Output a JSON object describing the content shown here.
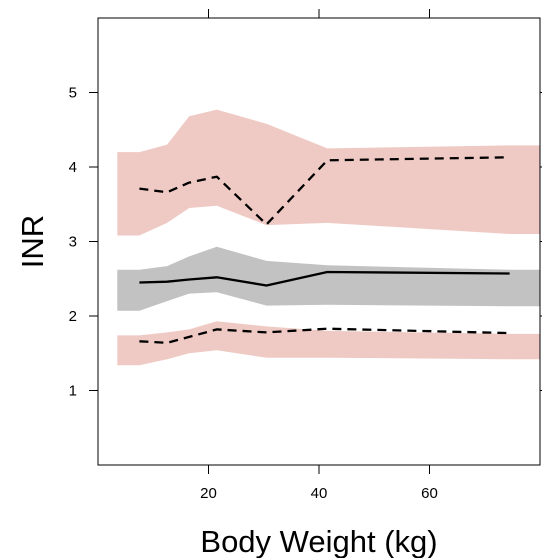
{
  "chart_data": {
    "type": "line",
    "title": "",
    "xlabel": "Body Weight (kg)",
    "ylabel": "INR",
    "xlim": [
      0,
      80
    ],
    "ylim": [
      0,
      6.0
    ],
    "xticks": [
      20,
      40,
      60
    ],
    "xtick_labels": [
      "20",
      "40",
      "60"
    ],
    "yticks": [
      1,
      2,
      3,
      4,
      5
    ],
    "ytick_labels": [
      "1",
      "2",
      "3",
      "4",
      "5"
    ],
    "grid": false,
    "legend": "none",
    "colors": {
      "outer_band": "#efcac4",
      "median_band": "#c2c2c2",
      "line": "#000000"
    },
    "bands": [
      {
        "role": "upper-percentile-interval",
        "x": [
          3.5,
          7.5,
          12.5,
          16.5,
          21.5,
          30.5,
          41.5,
          74.5,
          80
        ],
        "lower": [
          3.08,
          3.08,
          3.25,
          3.45,
          3.48,
          3.22,
          3.25,
          3.1,
          3.1
        ],
        "upper": [
          4.2,
          4.2,
          4.3,
          4.68,
          4.77,
          4.58,
          4.25,
          4.29,
          4.29
        ]
      },
      {
        "role": "median-interval",
        "x": [
          3.5,
          7.5,
          12.5,
          16.5,
          21.5,
          30.5,
          41.5,
          74.5,
          80
        ],
        "lower": [
          2.07,
          2.07,
          2.2,
          2.3,
          2.32,
          2.14,
          2.15,
          2.13,
          2.13
        ],
        "upper": [
          2.62,
          2.62,
          2.67,
          2.8,
          2.93,
          2.74,
          2.68,
          2.62,
          2.62
        ]
      },
      {
        "role": "lower-percentile-interval",
        "x": [
          3.5,
          7.5,
          12.5,
          16.5,
          21.5,
          30.5,
          41.5,
          74.5,
          80
        ],
        "lower": [
          1.34,
          1.34,
          1.42,
          1.5,
          1.54,
          1.44,
          1.44,
          1.42,
          1.42
        ],
        "upper": [
          1.74,
          1.74,
          1.78,
          1.82,
          1.93,
          1.86,
          1.8,
          1.76,
          1.76
        ]
      }
    ],
    "series": [
      {
        "role": "median",
        "dash": "solid",
        "x": [
          7.5,
          12.5,
          16.5,
          21.5,
          30.5,
          41.5,
          74.5
        ],
        "y": [
          2.45,
          2.46,
          2.49,
          2.52,
          2.41,
          2.59,
          2.57
        ]
      },
      {
        "role": "upper-percentile",
        "dash": "dashed",
        "x": [
          7.5,
          12.5,
          16.5,
          21.5,
          30.5,
          41.5,
          74.5
        ],
        "y": [
          3.71,
          3.66,
          3.79,
          3.87,
          3.23,
          4.09,
          4.13
        ]
      },
      {
        "role": "lower-percentile",
        "dash": "dashed",
        "x": [
          7.5,
          12.5,
          16.5,
          21.5,
          30.5,
          41.5,
          74.5
        ],
        "y": [
          1.66,
          1.64,
          1.72,
          1.82,
          1.78,
          1.83,
          1.77
        ]
      }
    ]
  }
}
